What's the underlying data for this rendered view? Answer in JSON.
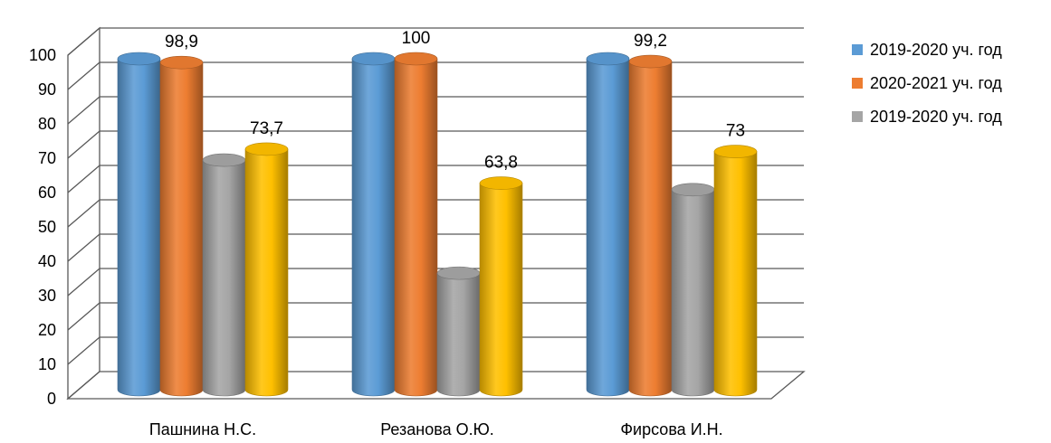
{
  "chart_data": {
    "type": "bar",
    "categories": [
      "Пашнина Н.С.",
      "Резанова О.Ю.",
      "Фирсова И.Н."
    ],
    "series": [
      {
        "name": "2019-2020 уч. год",
        "values": [
          100,
          100,
          100
        ],
        "color": "#5B9BD5",
        "labels": [
          "",
          "",
          ""
        ]
      },
      {
        "name": "2020-2021 уч. год",
        "values": [
          98.9,
          100,
          99.2
        ],
        "color": "#ED7D31",
        "labels": [
          "98,9",
          "100",
          "99,2"
        ]
      },
      {
        "name": "2019-2020 уч. год",
        "values": [
          70.5,
          37.6,
          61.9
        ],
        "color": "#A5A5A5",
        "labels": [
          "",
          "",
          ""
        ]
      },
      {
        "name": "",
        "values": [
          73.7,
          63.8,
          73
        ],
        "color": "#FFC000",
        "labels": [
          "73,7",
          "63,8",
          "73"
        ]
      }
    ],
    "yticks": [
      "0",
      "10",
      "20",
      "30",
      "40",
      "50",
      "60",
      "70",
      "80",
      "90",
      "100"
    ],
    "ylim": [
      0,
      100
    ],
    "grid": true,
    "legend_position": "right",
    "bar_shape": "3d-cylinder"
  }
}
